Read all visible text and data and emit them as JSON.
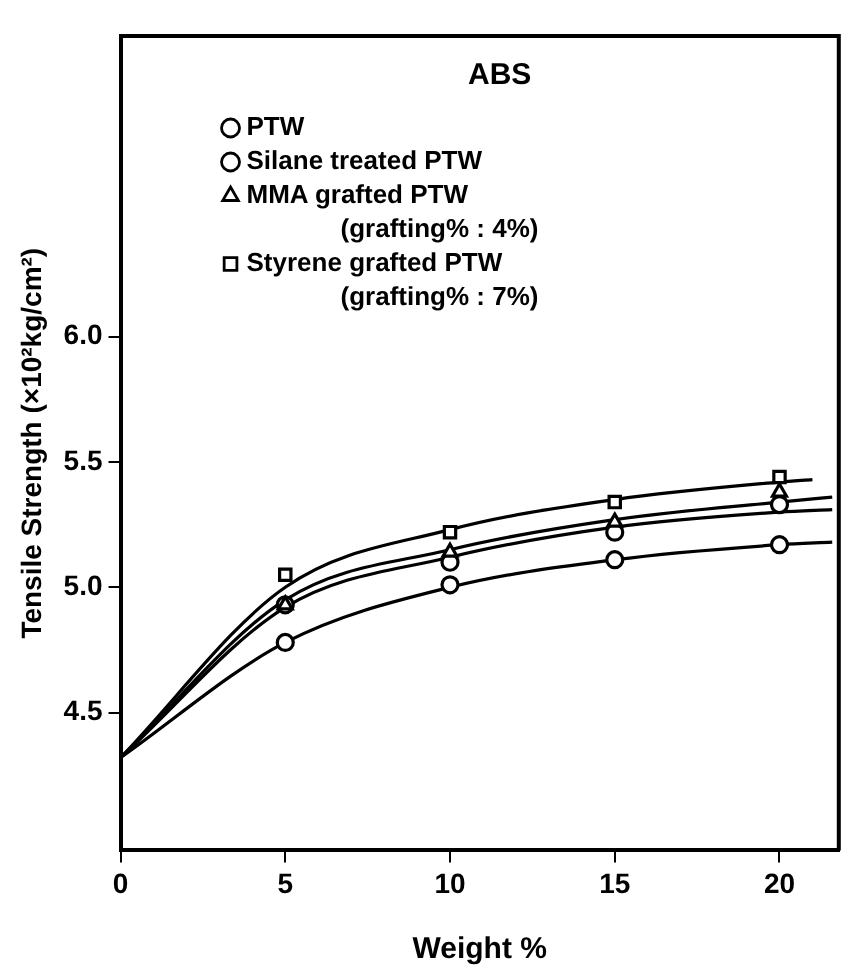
{
  "chart_data": {
    "type": "scatter",
    "title": "ABS",
    "xlabel": "Weight %",
    "ylabel": "Tensile Strength (×10²kg/cm²)",
    "xlim": [
      0,
      21.8
    ],
    "xticks": [
      0,
      5,
      10,
      15,
      20
    ],
    "ylim": [
      3.95,
      7.2
    ],
    "yticks": [
      {
        "value": 4.5,
        "label": "4.5"
      },
      {
        "value": 5.0,
        "label": "5.0"
      },
      {
        "value": 5.5,
        "label": "5.5"
      },
      {
        "value": 6.0,
        "label": "6.0"
      }
    ],
    "grid": false,
    "legend": "top",
    "series": [
      {
        "type": "line",
        "marker": "none",
        "color": "#000000",
        "x": [
          0,
          5,
          10,
          15,
          20,
          21.6
        ],
        "values": [
          4.32,
          4.78,
          5.0,
          5.11,
          5.17,
          5.18
        ]
      },
      {
        "type": "line",
        "marker": "none",
        "color": "#000000",
        "x": [
          0,
          5,
          10,
          15,
          20,
          21.6
        ],
        "values": [
          4.32,
          4.92,
          5.12,
          5.24,
          5.3,
          5.31
        ]
      },
      {
        "type": "line",
        "marker": "none",
        "color": "#000000",
        "x": [
          0,
          5,
          10,
          15,
          20,
          21.6
        ],
        "values": [
          4.32,
          4.95,
          5.15,
          5.27,
          5.34,
          5.36
        ]
      },
      {
        "type": "line",
        "marker": "none",
        "color": "#000000",
        "x": [
          0,
          5,
          10,
          15,
          20,
          21
        ],
        "values": [
          4.32,
          5.0,
          5.23,
          5.35,
          5.42,
          5.43
        ]
      },
      {
        "name": "PTW",
        "marker": "circle",
        "color": "#000000",
        "x": [
          5,
          10,
          15,
          20
        ],
        "values": [
          4.78,
          5.01,
          5.11,
          5.17
        ]
      },
      {
        "name": "Silane treated PTW",
        "marker": "circle",
        "color": "#000000",
        "x": [
          5,
          10,
          15,
          20
        ],
        "values": [
          4.93,
          5.1,
          5.22,
          5.33
        ]
      },
      {
        "name": "MMA grafted PTW (grafting% : 4%)",
        "marker": "triangle",
        "color": "#000000",
        "x": [
          5,
          10,
          15,
          20
        ],
        "values": [
          4.93,
          5.14,
          5.26,
          5.38
        ]
      },
      {
        "name": "Styrene grafted PTW (grafting% : 7%)",
        "marker": "square",
        "color": "#000000",
        "x": [
          5,
          10,
          15,
          20
        ],
        "values": [
          5.05,
          5.22,
          5.34,
          5.44
        ]
      }
    ]
  }
}
